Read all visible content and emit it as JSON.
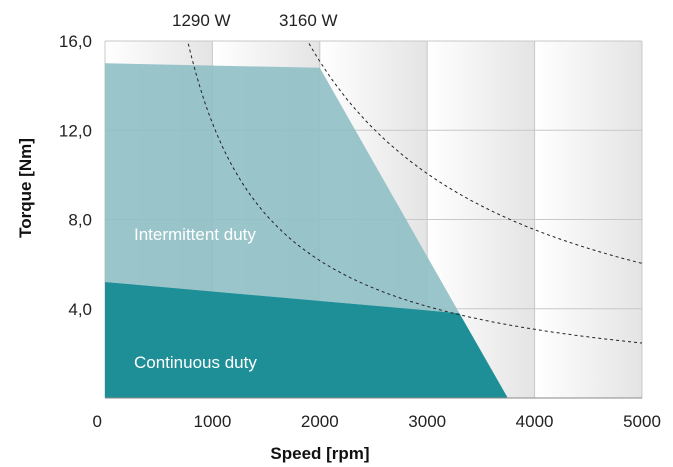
{
  "chart_data": {
    "type": "area",
    "xlabel": "Speed [rpm]",
    "ylabel": "Torque [Nm]",
    "xlim": [
      0,
      5000
    ],
    "ylim": [
      0,
      16
    ],
    "x_tick_labels": [
      "0",
      "1000",
      "2000",
      "3000",
      "4000",
      "5000"
    ],
    "y_tick_labels": [
      {
        "value": 4,
        "label": "4,0"
      },
      {
        "value": 8,
        "label": "8,0"
      },
      {
        "value": 12,
        "label": "12,0"
      },
      {
        "value": 16,
        "label": "16,0"
      }
    ],
    "grid": true,
    "series": [
      {
        "name": "Intermittent duty",
        "color": "#8fbfc5",
        "points": [
          [
            0,
            15.0
          ],
          [
            2000,
            14.8
          ],
          [
            3300,
            3.8
          ],
          [
            0,
            5.2
          ]
        ]
      },
      {
        "name": "Continuous duty",
        "color": "#1f8f97",
        "points": [
          [
            0,
            5.2
          ],
          [
            3300,
            3.8
          ],
          [
            3750,
            0
          ],
          [
            0,
            0
          ]
        ]
      }
    ],
    "power_curves": [
      {
        "label": "1290 W",
        "power_watts": 1290
      },
      {
        "label": "3160 W",
        "power_watts": 3160
      }
    ]
  }
}
